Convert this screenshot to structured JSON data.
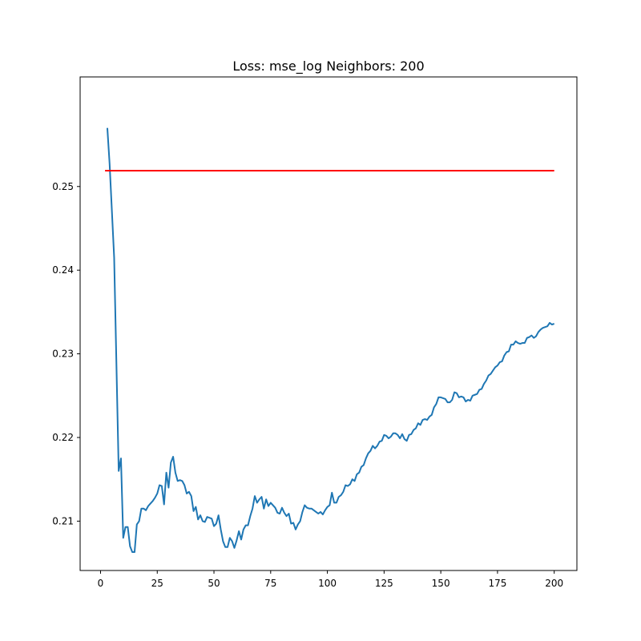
{
  "chart_data": {
    "type": "line",
    "title": "Loss: mse_log Neighbors: 200",
    "xlabel": "",
    "ylabel": "",
    "xlim": [
      -9,
      210
    ],
    "ylim": [
      0.2041,
      0.2631
    ],
    "x_ticks": [
      0,
      25,
      50,
      75,
      100,
      125,
      150,
      175,
      200
    ],
    "x_tick_labels": [
      "0",
      "25",
      "50",
      "75",
      "100",
      "125",
      "150",
      "175",
      "200"
    ],
    "y_ticks": [
      0.21,
      0.22,
      0.23,
      0.24,
      0.25
    ],
    "y_tick_labels": [
      "0.21",
      "0.22",
      "0.23",
      "0.24",
      "0.25"
    ],
    "grid": false,
    "legend": "none",
    "series": [
      {
        "color": "#1f77b4",
        "x": [
          3,
          4,
          6,
          8,
          9,
          10,
          11,
          12,
          13,
          14,
          15,
          16,
          17,
          18,
          19,
          20,
          21,
          22,
          23,
          24,
          25,
          26,
          27,
          28,
          29,
          30,
          31,
          32,
          33,
          34,
          35,
          36,
          37,
          38,
          39,
          40,
          41,
          42,
          43,
          44,
          45,
          46,
          47,
          48,
          49,
          50,
          51,
          52,
          53,
          54,
          55,
          56,
          57,
          58,
          59,
          60,
          61,
          62,
          63,
          64,
          65,
          66,
          67,
          68,
          69,
          70,
          71,
          72,
          73,
          74,
          75,
          76,
          77,
          78,
          79,
          80,
          81,
          82,
          83,
          84,
          85,
          86,
          87,
          88,
          89,
          90,
          91,
          92,
          93,
          94,
          95,
          96,
          97,
          98,
          99,
          100,
          101,
          102,
          103,
          104,
          105,
          106,
          107,
          108,
          109,
          110,
          111,
          112,
          113,
          114,
          115,
          116,
          117,
          118,
          119,
          120,
          121,
          122,
          123,
          124,
          125,
          126,
          127,
          128,
          129,
          130,
          131,
          132,
          133,
          134,
          135,
          136,
          137,
          138,
          139,
          140,
          141,
          142,
          143,
          144,
          145,
          146,
          147,
          148,
          149,
          150,
          151,
          152,
          153,
          154,
          155,
          156,
          157,
          158,
          159,
          160,
          161,
          162,
          163,
          164,
          165,
          166,
          167,
          168,
          169,
          170,
          171,
          172,
          173,
          174,
          175,
          176,
          177,
          178,
          179,
          180,
          181,
          182,
          183,
          184,
          185,
          186,
          187,
          188,
          189,
          190,
          191,
          192,
          193,
          194,
          195,
          196,
          197,
          198,
          199,
          200
        ],
        "y": [
          0.257,
          0.2527,
          0.2415,
          0.216,
          0.2175,
          0.208,
          0.2093,
          0.2093,
          0.207,
          0.2063,
          0.2063,
          0.2096,
          0.21,
          0.2115,
          0.2115,
          0.2113,
          0.2118,
          0.2121,
          0.2124,
          0.2128,
          0.2133,
          0.2143,
          0.2142,
          0.212,
          0.2158,
          0.214,
          0.217,
          0.2177,
          0.2158,
          0.2148,
          0.2149,
          0.2148,
          0.2143,
          0.2133,
          0.2135,
          0.213,
          0.2112,
          0.2117,
          0.2102,
          0.2107,
          0.21,
          0.2099,
          0.2105,
          0.2104,
          0.2103,
          0.2094,
          0.2097,
          0.2107,
          0.209,
          0.2076,
          0.2069,
          0.2069,
          0.208,
          0.2076,
          0.2068,
          0.2077,
          0.2088,
          0.2078,
          0.209,
          0.2095,
          0.2095,
          0.2106,
          0.2115,
          0.213,
          0.2122,
          0.2126,
          0.2129,
          0.2115,
          0.2126,
          0.2118,
          0.2122,
          0.2119,
          0.2116,
          0.211,
          0.2109,
          0.2116,
          0.211,
          0.2106,
          0.2109,
          0.2097,
          0.2098,
          0.209,
          0.2096,
          0.21,
          0.2111,
          0.2119,
          0.2116,
          0.2115,
          0.2115,
          0.2113,
          0.2111,
          0.2109,
          0.2111,
          0.2108,
          0.2113,
          0.2117,
          0.2119,
          0.2134,
          0.2122,
          0.2122,
          0.2129,
          0.2131,
          0.2135,
          0.2143,
          0.2142,
          0.2144,
          0.215,
          0.2148,
          0.2156,
          0.2158,
          0.2165,
          0.2167,
          0.2175,
          0.2181,
          0.2184,
          0.219,
          0.2187,
          0.219,
          0.2195,
          0.2196,
          0.2203,
          0.2202,
          0.2199,
          0.2201,
          0.2205,
          0.2205,
          0.2203,
          0.2199,
          0.2204,
          0.2198,
          0.2196,
          0.2203,
          0.2204,
          0.2209,
          0.2211,
          0.2217,
          0.2215,
          0.2221,
          0.2222,
          0.2221,
          0.2225,
          0.2227,
          0.2236,
          0.224,
          0.2248,
          0.2248,
          0.2247,
          0.2246,
          0.2242,
          0.2242,
          0.2245,
          0.2254,
          0.2253,
          0.2248,
          0.2249,
          0.2248,
          0.2243,
          0.2245,
          0.2244,
          0.225,
          0.2251,
          0.2252,
          0.2257,
          0.2258,
          0.2264,
          0.2268,
          0.2274,
          0.2276,
          0.228,
          0.2284,
          0.2286,
          0.229,
          0.2291,
          0.2298,
          0.2302,
          0.2303,
          0.2311,
          0.2311,
          0.2315,
          0.2313,
          0.2312,
          0.2313,
          0.2313,
          0.2319,
          0.232,
          0.2322,
          0.2319,
          0.2321,
          0.2326,
          0.2329,
          0.2331,
          0.2332,
          0.2333,
          0.2337,
          0.2335,
          0.2336
        ]
      },
      {
        "color": "#ff0000",
        "x": [
          2,
          200
        ],
        "y": 0.2519
      }
    ]
  }
}
